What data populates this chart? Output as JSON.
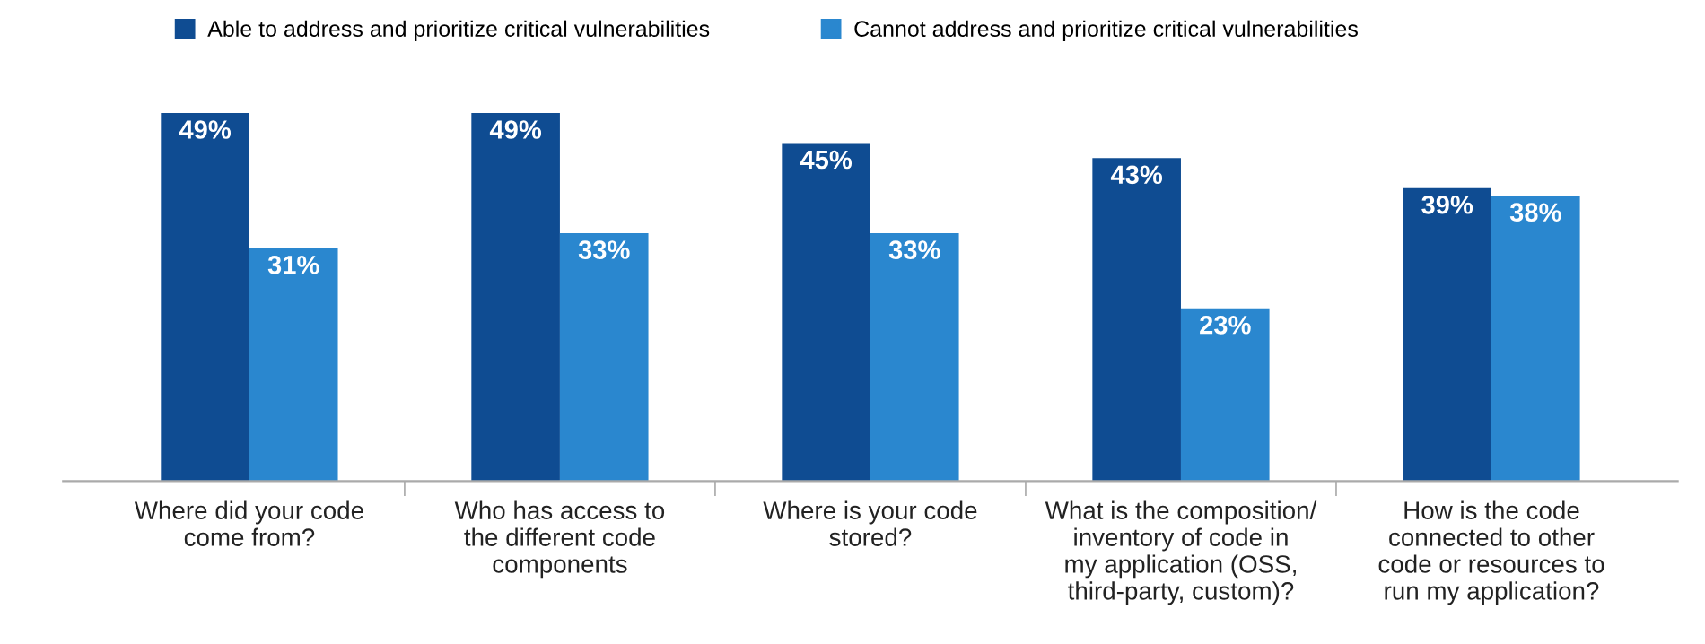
{
  "chart_data": {
    "type": "bar",
    "categories": [
      "Where did your code\ncome from?",
      "Who has access to\nthe different code\ncomponents",
      "Where is your code\nstored?",
      "What is the composition/\ninventory of code in\nmy application (OSS,\nthird-party, custom)?",
      "How is the code\nconnected to other\ncode or resources to\nrun my application?"
    ],
    "series": [
      {
        "name": "Able to address and prioritize critical vulnerabilities",
        "color": "#0f4c92",
        "values": [
          49,
          49,
          45,
          43,
          39
        ],
        "value_labels": [
          "49%",
          "49%",
          "45%",
          "43%",
          "39%"
        ]
      },
      {
        "name": "Cannot address and prioritize critical vulnerabilities",
        "color": "#2a87cf",
        "values": [
          31,
          33,
          33,
          23,
          38
        ],
        "value_labels": [
          "31%",
          "33%",
          "33%",
          "23%",
          "38%"
        ]
      }
    ],
    "legend": "top",
    "grid": false
  }
}
